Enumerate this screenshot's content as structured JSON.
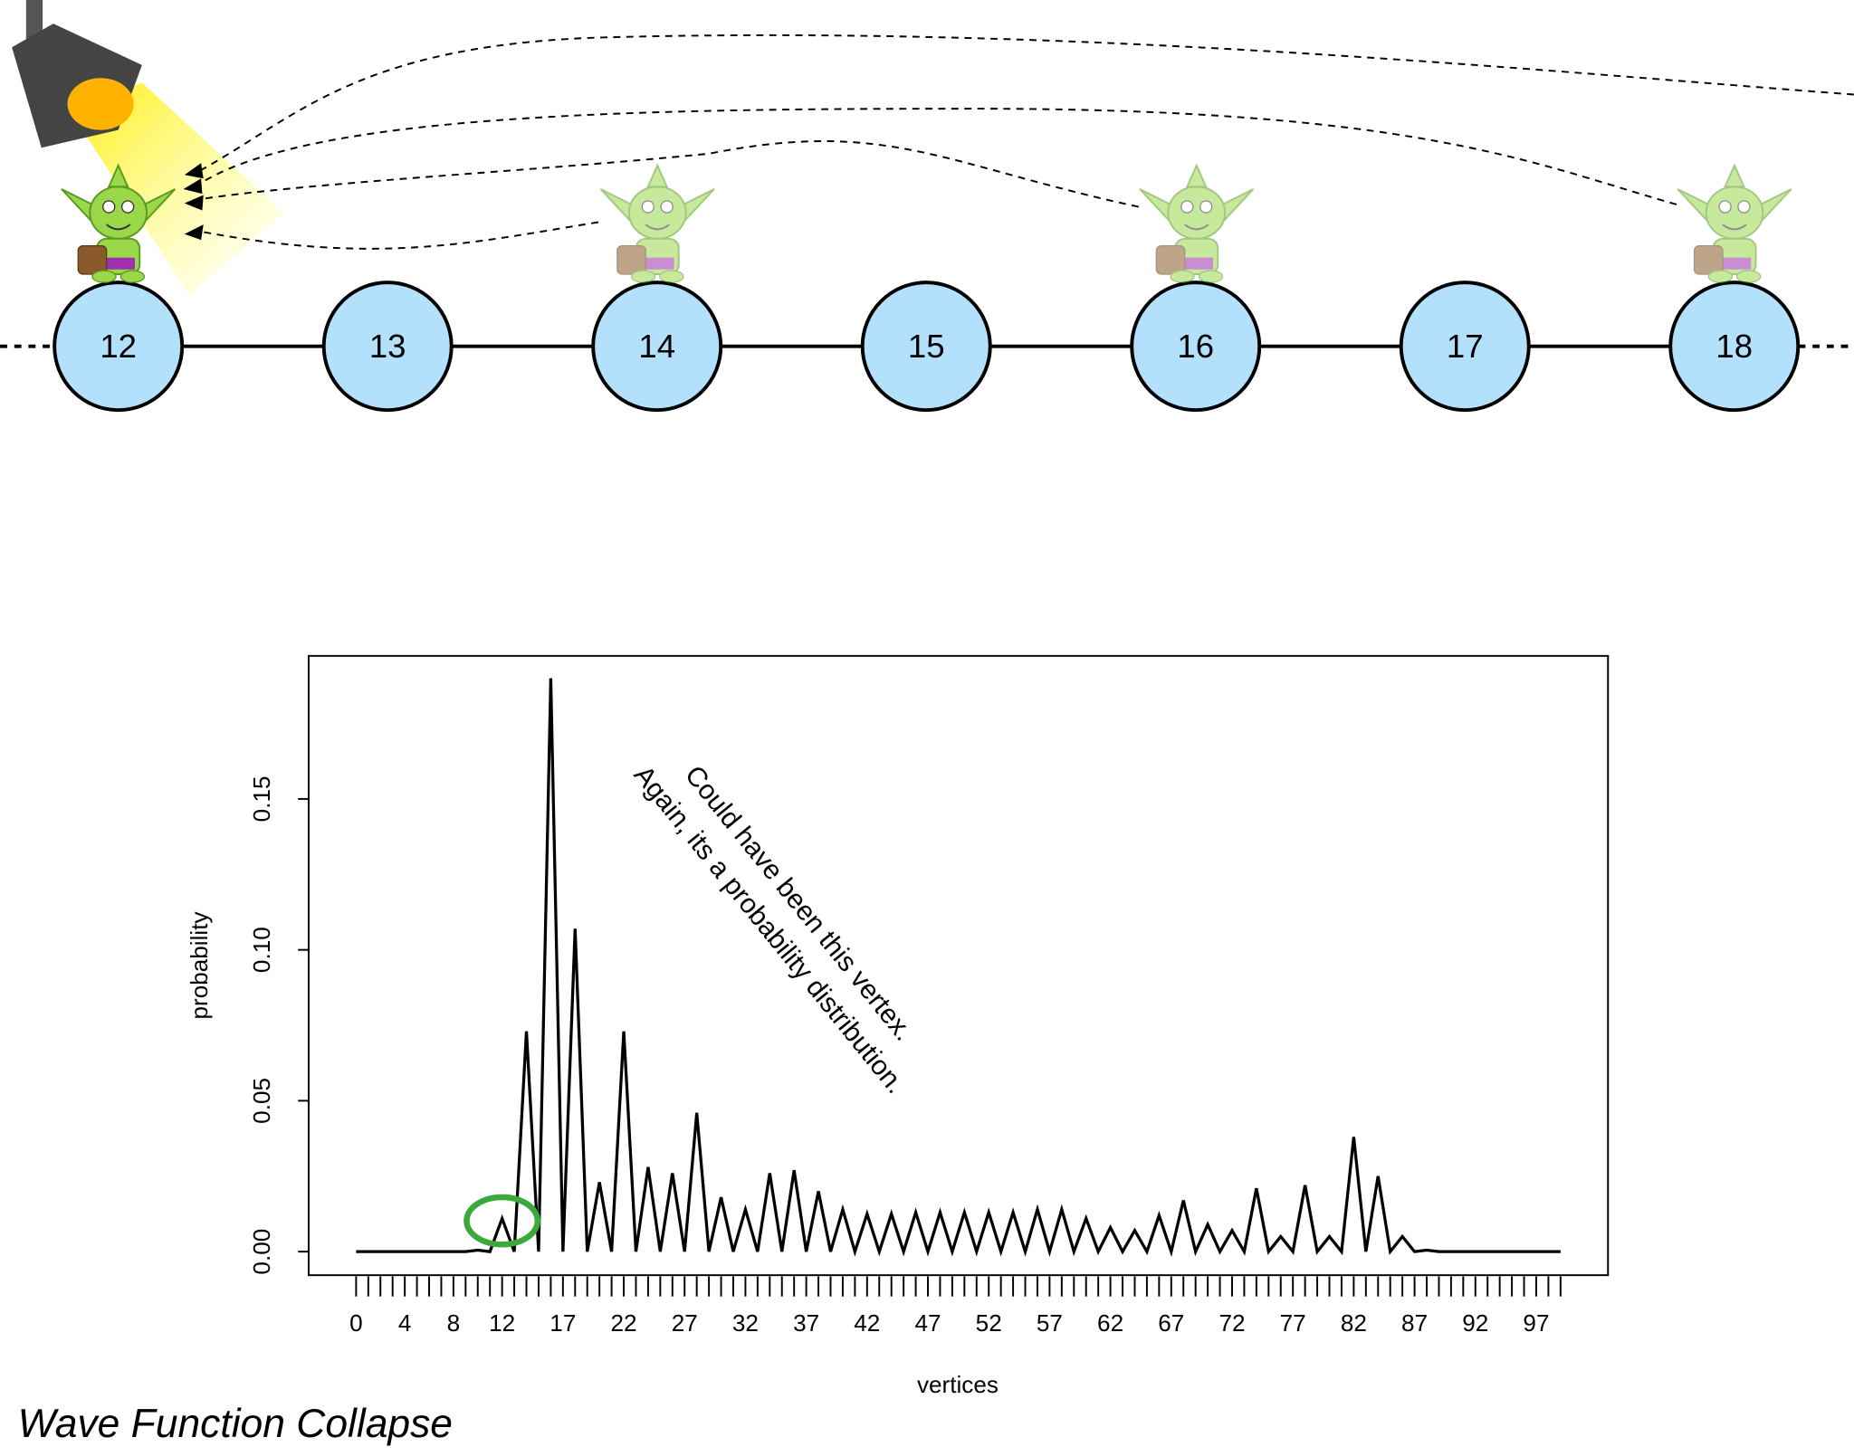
{
  "diagram": {
    "nodes": [
      12,
      13,
      14,
      15,
      16,
      17,
      18
    ]
  },
  "caption": "Wave Function Collapse",
  "chart_data": {
    "type": "line",
    "xlabel": "vertices",
    "ylabel": "probability",
    "annotations": [
      "Could have been this vertex.",
      "Again, its a probability distribution."
    ],
    "x": [
      0,
      1,
      2,
      3,
      4,
      5,
      6,
      7,
      8,
      9,
      10,
      11,
      12,
      13,
      14,
      15,
      16,
      17,
      18,
      19,
      20,
      21,
      22,
      23,
      24,
      25,
      26,
      27,
      28,
      29,
      30,
      31,
      32,
      33,
      34,
      35,
      36,
      37,
      38,
      39,
      40,
      41,
      42,
      43,
      44,
      45,
      46,
      47,
      48,
      49,
      50,
      51,
      52,
      53,
      54,
      55,
      56,
      57,
      58,
      59,
      60,
      61,
      62,
      63,
      64,
      65,
      66,
      67,
      68,
      69,
      70,
      71,
      72,
      73,
      74,
      75,
      76,
      77,
      78,
      79,
      80,
      81,
      82,
      83,
      84,
      85,
      86,
      87,
      88,
      89,
      90,
      91,
      92,
      93,
      94,
      95,
      96,
      97,
      98,
      99
    ],
    "series": [
      {
        "name": "probability",
        "color": "#000000",
        "values": [
          0,
          0,
          0,
          0,
          0,
          0,
          0,
          0,
          0,
          0,
          0.0005,
          0,
          0.011,
          0,
          0.073,
          0,
          0.19,
          0,
          0.107,
          0,
          0.023,
          0,
          0.073,
          0,
          0.028,
          0,
          0.026,
          0,
          0.046,
          0,
          0.018,
          0,
          0.014,
          0,
          0.026,
          0,
          0.027,
          0,
          0.02,
          0,
          0.014,
          0,
          0.0125,
          0,
          0.0125,
          0,
          0.013,
          0,
          0.013,
          0,
          0.013,
          0,
          0.013,
          0,
          0.013,
          0,
          0.014,
          0,
          0.014,
          0,
          0.011,
          0,
          0.008,
          0,
          0.007,
          0,
          0.012,
          0,
          0.017,
          0,
          0.009,
          0,
          0.007,
          0,
          0.021,
          0,
          0.005,
          0,
          0.022,
          0,
          0.005,
          0,
          0.038,
          0,
          0.025,
          0,
          0.005,
          0,
          0.0005,
          0,
          0,
          0,
          0,
          0,
          0,
          0,
          0,
          0,
          0,
          0
        ]
      }
    ],
    "xlim": [
      -3.9,
      102.9
    ],
    "ylim": [
      -0.0078,
      0.1974
    ],
    "xticks": [
      0,
      4,
      8,
      12,
      17,
      22,
      27,
      32,
      37,
      42,
      47,
      52,
      57,
      62,
      67,
      72,
      77,
      82,
      87,
      92,
      97
    ],
    "xminorticks": [
      0,
      1,
      2,
      3,
      4,
      5,
      6,
      7,
      8,
      9,
      10,
      11,
      12,
      13,
      14,
      15,
      16,
      17,
      18,
      19,
      20,
      21,
      22,
      23,
      24,
      25,
      26,
      27,
      28,
      29,
      30,
      31,
      32,
      33,
      34,
      35,
      36,
      37,
      38,
      39,
      40,
      41,
      42,
      43,
      44,
      45,
      46,
      47,
      48,
      49,
      50,
      51,
      52,
      53,
      54,
      55,
      56,
      57,
      58,
      59,
      60,
      61,
      62,
      63,
      64,
      65,
      66,
      67,
      68,
      69,
      70,
      71,
      72,
      73,
      74,
      75,
      76,
      77,
      78,
      79,
      80,
      81,
      82,
      83,
      84,
      85,
      86,
      87,
      88,
      89,
      90,
      91,
      92,
      93,
      94,
      95,
      96,
      97,
      98,
      99
    ],
    "yticks": [
      {
        "value": 0,
        "label": "0.00"
      },
      {
        "value": 0.05,
        "label": "0.05"
      },
      {
        "value": 0.1,
        "label": "0.10"
      },
      {
        "value": 0.15,
        "label": "0.15"
      }
    ],
    "highlight": 12,
    "highlight_color": "#3aaa3a"
  }
}
